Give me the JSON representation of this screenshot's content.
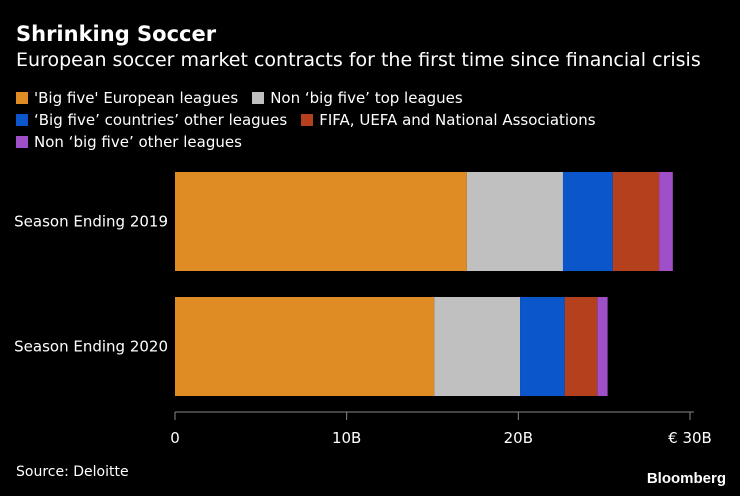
{
  "title": "Shrinking Soccer",
  "subtitle": "European soccer market contracts for the first time since financial crisis",
  "source": "Source: Deloitte",
  "brand": "Bloomberg",
  "chart_data": {
    "type": "bar",
    "orientation": "horizontal",
    "stacked": true,
    "categories": [
      "Season Ending 2019",
      "Season Ending 2020"
    ],
    "series": [
      {
        "name": "'Big five' European leagues",
        "color": "#e08c24",
        "values": [
          17.0,
          15.1
        ]
      },
      {
        "name": "Non ‘big five’ top leagues",
        "color": "#c0c0c0",
        "values": [
          5.6,
          5.0
        ]
      },
      {
        "name": "‘Big five’ countries’ other leagues",
        "color": "#0c56cc",
        "values": [
          2.9,
          2.6
        ]
      },
      {
        "name": "FIFA, UEFA and National Associations",
        "color": "#b4401e",
        "values": [
          2.7,
          1.9
        ]
      },
      {
        "name": "Non ‘big five’ other leagues",
        "color": "#9f4fc7",
        "values": [
          0.8,
          0.6
        ]
      }
    ],
    "xlim": [
      0,
      30
    ],
    "x_ticks": [
      {
        "value": 0,
        "label": "0"
      },
      {
        "value": 10,
        "label": "10B"
      },
      {
        "value": 20,
        "label": "20B"
      },
      {
        "value": 30,
        "label": "€ 30B"
      }
    ],
    "legend_position": "top-left",
    "grid": false
  }
}
